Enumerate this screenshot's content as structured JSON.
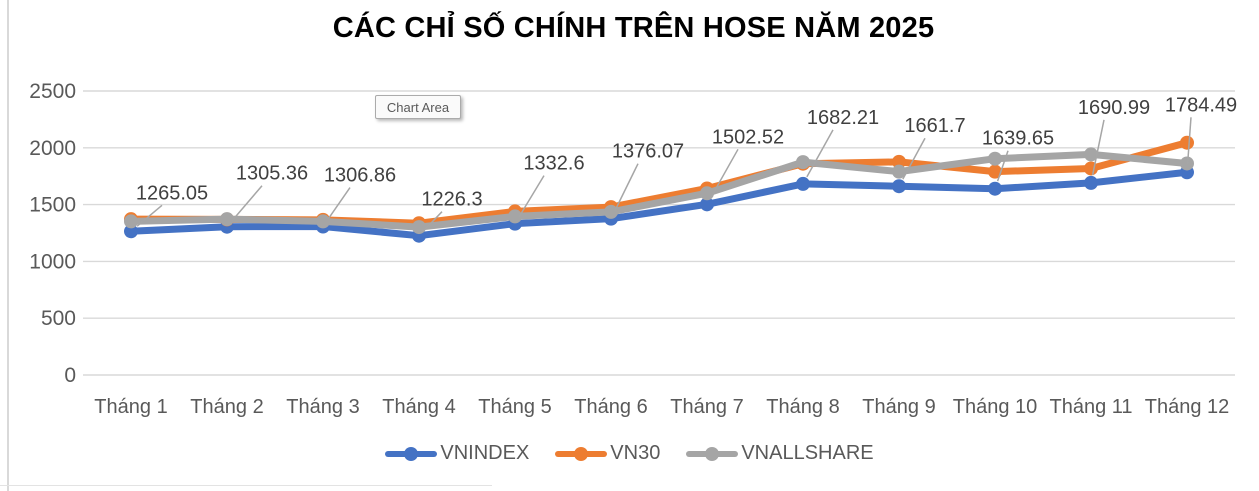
{
  "title": "CÁC CHỈ SỐ CHÍNH TRÊN HOSE NĂM 2025",
  "tooltip": {
    "label": "Chart Area"
  },
  "legend": [
    {
      "name": "VNINDEX",
      "color": "#4472C4"
    },
    {
      "name": "VN30",
      "color": "#ED7D31"
    },
    {
      "name": "VNALLSHARE",
      "color": "#A5A5A5"
    }
  ],
  "colors": {
    "vnindex": "#4472C4",
    "vn30": "#ED7D31",
    "vnallshare": "#A5A5A5",
    "gridline": "#D9D9D9",
    "axis_text": "#595959",
    "data_label_text": "#404040",
    "leader_line": "#A6A6A6"
  },
  "chart_data": {
    "type": "line",
    "title": "CÁC CHỈ SỐ CHÍNH TRÊN HOSE NĂM 2025",
    "categories": [
      "Tháng 1",
      "Tháng 2",
      "Tháng 3",
      "Tháng 4",
      "Tháng 5",
      "Tháng 6",
      "Tháng 7",
      "Tháng 8",
      "Tháng 9",
      "Tháng 10",
      "Tháng 11",
      "Tháng 12"
    ],
    "series": [
      {
        "name": "VNINDEX",
        "color": "#4472C4",
        "values": [
          1265.05,
          1305.36,
          1306.86,
          1226.3,
          1332.6,
          1376.07,
          1502.52,
          1682.21,
          1661.7,
          1639.65,
          1690.99,
          1784.49
        ],
        "data_labels": [
          "1265.05",
          "1305.36",
          "1306.86",
          "1226.3",
          "1332.6",
          "1376.07",
          "1502.52",
          "1682.21",
          "1661.7",
          "1639.65",
          "1690.99",
          "1784.49"
        ]
      },
      {
        "name": "VN30",
        "color": "#ED7D31",
        "values": [
          1372,
          1370,
          1366,
          1336,
          1440,
          1478,
          1642,
          1860,
          1876,
          1790,
          1818,
          2045
        ],
        "data_labels": null
      },
      {
        "name": "VNALLSHARE",
        "color": "#A5A5A5",
        "values": [
          1352,
          1372,
          1352,
          1302,
          1396,
          1436,
          1600,
          1874,
          1790,
          1904,
          1942,
          1862
        ],
        "data_labels": null
      }
    ],
    "y_ticks": [
      0,
      500,
      1000,
      1500,
      2000,
      2500
    ],
    "ylim": [
      0,
      2500
    ],
    "xlabel": "",
    "ylabel": "",
    "grid": "horizontal",
    "legend_position": "bottom"
  }
}
